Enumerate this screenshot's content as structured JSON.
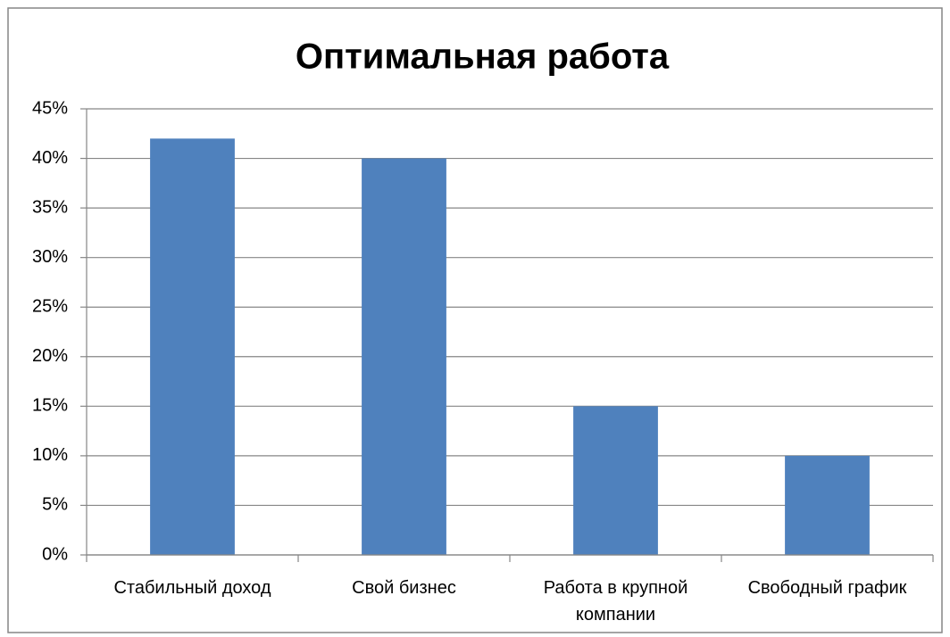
{
  "chart_data": {
    "type": "bar",
    "title": "Оптимальная работа",
    "categories": [
      "Стабильный доход",
      "Свой бизнес",
      "Работа в крупной компании",
      "Свободный график"
    ],
    "values": [
      42,
      40,
      15,
      10
    ],
    "color": "#4f81bd",
    "ylim": [
      0,
      45
    ],
    "yticks": [
      {
        "value": 0,
        "label": "0%"
      },
      {
        "value": 5,
        "label": "5%"
      },
      {
        "value": 10,
        "label": "10%"
      },
      {
        "value": 15,
        "label": "15%"
      },
      {
        "value": 20,
        "label": "20%"
      },
      {
        "value": 25,
        "label": "25%"
      },
      {
        "value": 30,
        "label": "30%"
      },
      {
        "value": 35,
        "label": "35%"
      },
      {
        "value": 40,
        "label": "40%"
      },
      {
        "value": 45,
        "label": "45%"
      }
    ],
    "grid": true
  }
}
